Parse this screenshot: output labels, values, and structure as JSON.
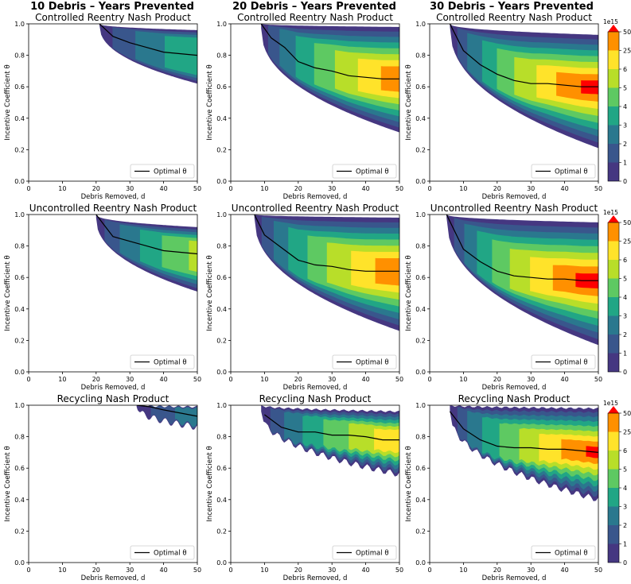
{
  "figure": {
    "column_titles": [
      "10 Debris – Years Prevented",
      "20 Debris – Years Prevented",
      "30 Debris – Years Prevented"
    ],
    "row_titles": [
      "Controlled Reentry Nash Product",
      "Uncontrolled Reentry Nash Product",
      "Recycling Nash Product"
    ]
  },
  "chart_data": {
    "type": "filled-contour grid",
    "xlabel": "Debris Removed, d",
    "ylabel": "Incentive Coefficient θ",
    "xlim": [
      0,
      50
    ],
    "ylim": [
      0.0,
      1.0
    ],
    "xticks": [
      "0",
      "10",
      "20",
      "30",
      "40",
      "50"
    ],
    "yticks": [
      "0.0",
      "0.2",
      "0.4",
      "0.6",
      "0.8",
      "1.0"
    ],
    "legend_label": "Optimal θ",
    "colorbar": {
      "scale_label": "1e15",
      "levels": [
        "0",
        "1",
        "2",
        "3",
        "4",
        "5",
        "6",
        "25",
        "50"
      ],
      "colors": [
        "#453781",
        "#39568c",
        "#2a788e",
        "#21a685",
        "#5ec962",
        "#b8de29",
        "#ffe32a",
        "#ff9000",
        "#ff0000"
      ],
      "extend": "max"
    },
    "panels": [
      {
        "row": 0,
        "col": 0,
        "d_min": 21,
        "bound_lo": [
          0.99,
          0.62
        ],
        "bound_hi": [
          1.0,
          0.96
        ],
        "level": 0.35,
        "opt": [
          [
            21,
            1.0
          ],
          [
            25,
            0.92
          ],
          [
            30,
            0.88
          ],
          [
            35,
            0.85
          ],
          [
            40,
            0.82
          ],
          [
            45,
            0.81
          ],
          [
            50,
            0.8
          ]
        ]
      },
      {
        "row": 0,
        "col": 1,
        "d_min": 9,
        "bound_lo": [
          0.97,
          0.31
        ],
        "bound_hi": [
          1.0,
          0.98
        ],
        "level": 0.95,
        "opt": [
          [
            9,
            1.0
          ],
          [
            12,
            0.91
          ],
          [
            16,
            0.85
          ],
          [
            20,
            0.76
          ],
          [
            25,
            0.72
          ],
          [
            30,
            0.7
          ],
          [
            35,
            0.67
          ],
          [
            40,
            0.66
          ],
          [
            45,
            0.65
          ],
          [
            50,
            0.65
          ]
        ]
      },
      {
        "row": 0,
        "col": 2,
        "d_min": 6,
        "bound_lo": [
          0.98,
          0.21
        ],
        "bound_hi": [
          1.0,
          0.93
        ],
        "level": 1.15,
        "opt": [
          [
            6,
            1.0
          ],
          [
            10,
            0.83
          ],
          [
            15,
            0.74
          ],
          [
            20,
            0.68
          ],
          [
            25,
            0.64
          ],
          [
            30,
            0.62
          ],
          [
            35,
            0.62
          ],
          [
            40,
            0.61
          ],
          [
            45,
            0.6
          ],
          [
            50,
            0.6
          ]
        ]
      },
      {
        "row": 1,
        "col": 0,
        "d_min": 20,
        "bound_lo": [
          0.98,
          0.51
        ],
        "bound_hi": [
          1.0,
          0.92
        ],
        "level": 0.55,
        "opt": [
          [
            20,
            1.0
          ],
          [
            25,
            0.86
          ],
          [
            30,
            0.83
          ],
          [
            35,
            0.8
          ],
          [
            40,
            0.77
          ],
          [
            45,
            0.76
          ],
          [
            50,
            0.75
          ]
        ]
      },
      {
        "row": 1,
        "col": 1,
        "d_min": 7,
        "bound_lo": [
          0.98,
          0.26
        ],
        "bound_hi": [
          1.0,
          0.98
        ],
        "level": 1.0,
        "opt": [
          [
            7,
            1.0
          ],
          [
            10,
            0.87
          ],
          [
            15,
            0.79
          ],
          [
            20,
            0.71
          ],
          [
            25,
            0.68
          ],
          [
            30,
            0.67
          ],
          [
            35,
            0.65
          ],
          [
            40,
            0.64
          ],
          [
            45,
            0.64
          ],
          [
            50,
            0.64
          ]
        ]
      },
      {
        "row": 1,
        "col": 2,
        "d_min": 5,
        "bound_lo": [
          0.98,
          0.17
        ],
        "bound_hi": [
          1.0,
          0.95
        ],
        "level": 1.2,
        "opt": [
          [
            5,
            1.0
          ],
          [
            10,
            0.78
          ],
          [
            15,
            0.7
          ],
          [
            20,
            0.64
          ],
          [
            25,
            0.61
          ],
          [
            30,
            0.6
          ],
          [
            35,
            0.59
          ],
          [
            40,
            0.59
          ],
          [
            45,
            0.58
          ],
          [
            50,
            0.58
          ]
        ]
      },
      {
        "row": 2,
        "col": 0,
        "d_min": 32,
        "bound_lo": [
          0.99,
          0.86
        ],
        "bound_hi": [
          1.0,
          0.99
        ],
        "level": 0.2,
        "opt": [
          [
            32,
            1.0
          ],
          [
            36,
            0.99
          ],
          [
            40,
            0.97
          ],
          [
            45,
            0.95
          ],
          [
            50,
            0.93
          ]
        ]
      },
      {
        "row": 2,
        "col": 1,
        "d_min": 9,
        "bound_lo": [
          0.96,
          0.56
        ],
        "bound_hi": [
          1.0,
          0.96
        ],
        "level": 0.8,
        "opt": [
          [
            10,
            0.94
          ],
          [
            15,
            0.86
          ],
          [
            20,
            0.83
          ],
          [
            25,
            0.83
          ],
          [
            30,
            0.81
          ],
          [
            35,
            0.81
          ],
          [
            40,
            0.8
          ],
          [
            45,
            0.78
          ],
          [
            50,
            0.78
          ]
        ]
      },
      {
        "row": 2,
        "col": 2,
        "d_min": 6,
        "bound_lo": [
          0.96,
          0.4
        ],
        "bound_hi": [
          1.0,
          0.98
        ],
        "level": 1.1,
        "opt": [
          [
            6,
            0.96
          ],
          [
            10,
            0.85
          ],
          [
            15,
            0.78
          ],
          [
            20,
            0.74
          ],
          [
            25,
            0.73
          ],
          [
            30,
            0.73
          ],
          [
            35,
            0.72
          ],
          [
            40,
            0.72
          ],
          [
            45,
            0.71
          ],
          [
            50,
            0.7
          ]
        ]
      }
    ]
  }
}
